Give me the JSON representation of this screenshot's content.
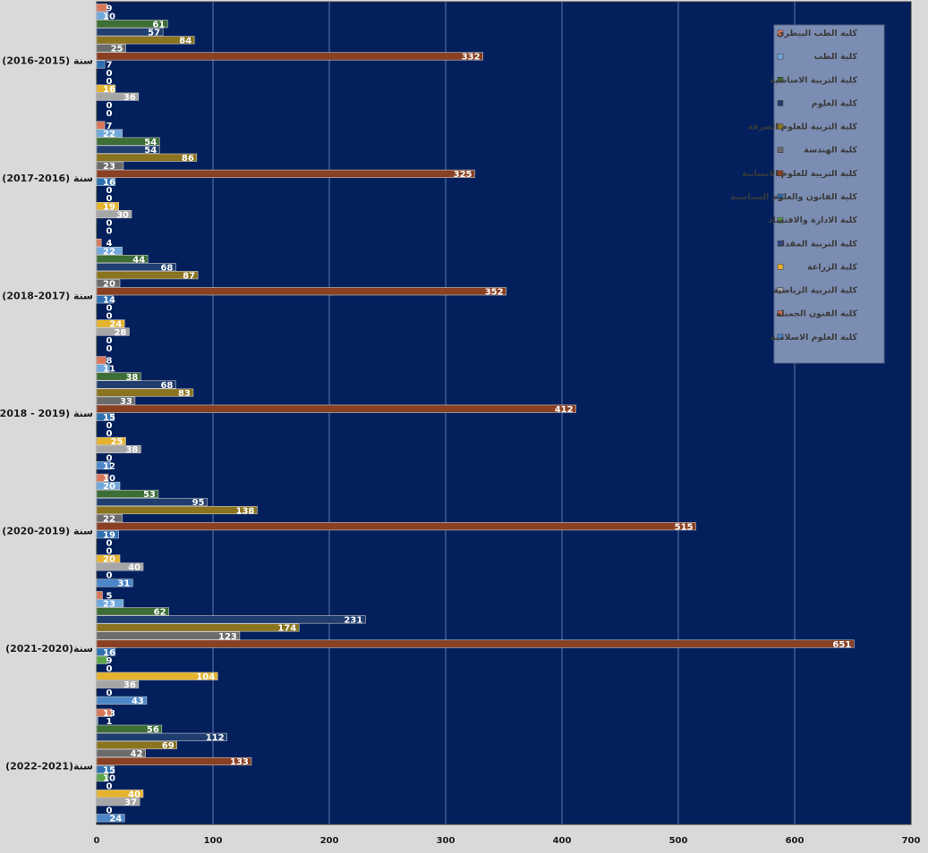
{
  "chart_data": {
    "type": "bar",
    "orientation": "horizontal",
    "title": "",
    "xlabel": "",
    "ylabel": "",
    "xlim": [
      0,
      700
    ],
    "x_ticks": [
      0,
      100,
      200,
      300,
      400,
      500,
      600,
      700
    ],
    "grid": true,
    "legend_position": "top-right",
    "categories": [
      "سنة (2015-2016)",
      "سنة (2016-2017)",
      "سنة (2017-2018)",
      "سنة (2019 - 2018)",
      "سنة (2019-2020)",
      "سنة(2020-2021)",
      "سنة(2021-2022)"
    ],
    "series": [
      {
        "name": "كلية الطب البيطري",
        "color": "#d9775a",
        "values": [
          9,
          7,
          4,
          8,
          10,
          5,
          13
        ]
      },
      {
        "name": "كلية الطب",
        "color": "#6fa8dc",
        "values": [
          10,
          22,
          22,
          11,
          20,
          23,
          1
        ]
      },
      {
        "name": "كلية التربية الاساسية",
        "color": "#3c6e35",
        "values": [
          61,
          54,
          44,
          38,
          53,
          62,
          56
        ]
      },
      {
        "name": "كلية العلوم",
        "color": "#1f3d6e",
        "values": [
          57,
          54,
          68,
          68,
          95,
          231,
          112
        ]
      },
      {
        "name": "كلية التربية للعلوم الصرفة",
        "color": "#8b7420",
        "values": [
          84,
          86,
          87,
          83,
          138,
          174,
          69
        ]
      },
      {
        "name": "كلية الهندسة",
        "color": "#6b6b6b",
        "values": [
          25,
          23,
          20,
          33,
          22,
          123,
          42
        ]
      },
      {
        "name": "كلية التربية للعلوم الانسانية",
        "color": "#8a4022",
        "values": [
          332,
          325,
          352,
          412,
          515,
          651,
          133
        ]
      },
      {
        "name": "كلية القانون والعلوم السياسية",
        "color": "#2e6fb0",
        "values": [
          7,
          16,
          14,
          15,
          19,
          16,
          15
        ]
      },
      {
        "name": "كلية الادارة والاقتصاد",
        "color": "#5aa34a",
        "values": [
          0,
          0,
          0,
          0,
          0,
          9,
          10
        ]
      },
      {
        "name": "كلية التربية المقداد",
        "color": "#2a4a9e",
        "values": [
          0,
          0,
          0,
          0,
          0,
          0,
          0
        ]
      },
      {
        "name": "كلية الزراعة",
        "color": "#e6b32e",
        "values": [
          16,
          19,
          24,
          25,
          20,
          104,
          40
        ]
      },
      {
        "name": "كلية التربية الرياضية",
        "color": "#a6a6a6",
        "values": [
          36,
          30,
          28,
          38,
          40,
          36,
          37
        ]
      },
      {
        "name": "كلية الفنون الجميلة",
        "color": "#e07050",
        "values": [
          0,
          0,
          0,
          0,
          0,
          0,
          0
        ]
      },
      {
        "name": "كلية العلوم الاسلامية",
        "color": "#4a86c8",
        "values": [
          0,
          0,
          0,
          12,
          31,
          43,
          24
        ]
      }
    ]
  },
  "colors": {
    "plot_background": "#03205c",
    "gridline": "#5f78a8",
    "page_background": "#d9d9d9",
    "legend_background": "#7c8db3"
  }
}
